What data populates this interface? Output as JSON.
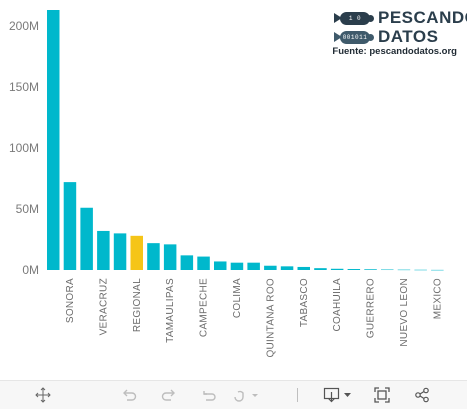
{
  "header": {
    "logo_line1": "PESCANDO",
    "logo_line2": "DATOS",
    "fish1_text": "1 0",
    "fish2_text": "001011",
    "source": "Fuente: pescandodatos.org"
  },
  "colors": {
    "bar": "#00b8cc",
    "highlight": "#f5c518",
    "axis_text": "#7a7a7a",
    "logo": "#2b3e4c"
  },
  "chart_data": {
    "type": "bar",
    "title": "",
    "xlabel": "",
    "ylabel": "",
    "ylim": [
      0,
      213
    ],
    "y_unit": "M",
    "yticks": [
      {
        "value": 0,
        "label": "0M"
      },
      {
        "value": 50,
        "label": "50M"
      },
      {
        "value": 100,
        "label": "100M"
      },
      {
        "value": 150,
        "label": "150M"
      },
      {
        "value": 200,
        "label": "200M"
      }
    ],
    "bars": [
      {
        "value": 213,
        "label": "",
        "highlight": false
      },
      {
        "value": 72,
        "label": "SONORA",
        "highlight": false
      },
      {
        "value": 51,
        "label": "",
        "highlight": false
      },
      {
        "value": 32,
        "label": "VERACRUZ",
        "highlight": false
      },
      {
        "value": 30,
        "label": "",
        "highlight": false
      },
      {
        "value": 28,
        "label": "REGIONAL",
        "highlight": true
      },
      {
        "value": 22,
        "label": "",
        "highlight": false
      },
      {
        "value": 21,
        "label": "TAMAULIPAS",
        "highlight": false
      },
      {
        "value": 12,
        "label": "",
        "highlight": false
      },
      {
        "value": 11,
        "label": "CAMPECHE",
        "highlight": false
      },
      {
        "value": 7,
        "label": "",
        "highlight": false
      },
      {
        "value": 6,
        "label": "COLIMA",
        "highlight": false
      },
      {
        "value": 6,
        "label": "",
        "highlight": false
      },
      {
        "value": 3.5,
        "label": "QUINTANA ROO",
        "highlight": false
      },
      {
        "value": 3,
        "label": "",
        "highlight": false
      },
      {
        "value": 2.5,
        "label": "TABASCO",
        "highlight": false
      },
      {
        "value": 1.5,
        "label": "",
        "highlight": false
      },
      {
        "value": 1,
        "label": "COAHUILA",
        "highlight": false
      },
      {
        "value": 0.8,
        "label": "",
        "highlight": false
      },
      {
        "value": 0.6,
        "label": "GUERRERO",
        "highlight": false
      },
      {
        "value": 0.4,
        "label": "",
        "highlight": false
      },
      {
        "value": 0.3,
        "label": "NUEVO LEON",
        "highlight": false
      },
      {
        "value": 0.2,
        "label": "",
        "highlight": false
      },
      {
        "value": 0.1,
        "label": "MEXICO",
        "highlight": false
      }
    ]
  },
  "toolbar": {
    "items": [
      {
        "name": "pan-icon"
      },
      {
        "name": "undo-icon"
      },
      {
        "name": "redo-icon"
      },
      {
        "name": "revert-icon"
      },
      {
        "name": "refresh-icon"
      },
      {
        "name": "download-icon"
      },
      {
        "name": "fullscreen-icon"
      },
      {
        "name": "share-icon"
      }
    ]
  }
}
